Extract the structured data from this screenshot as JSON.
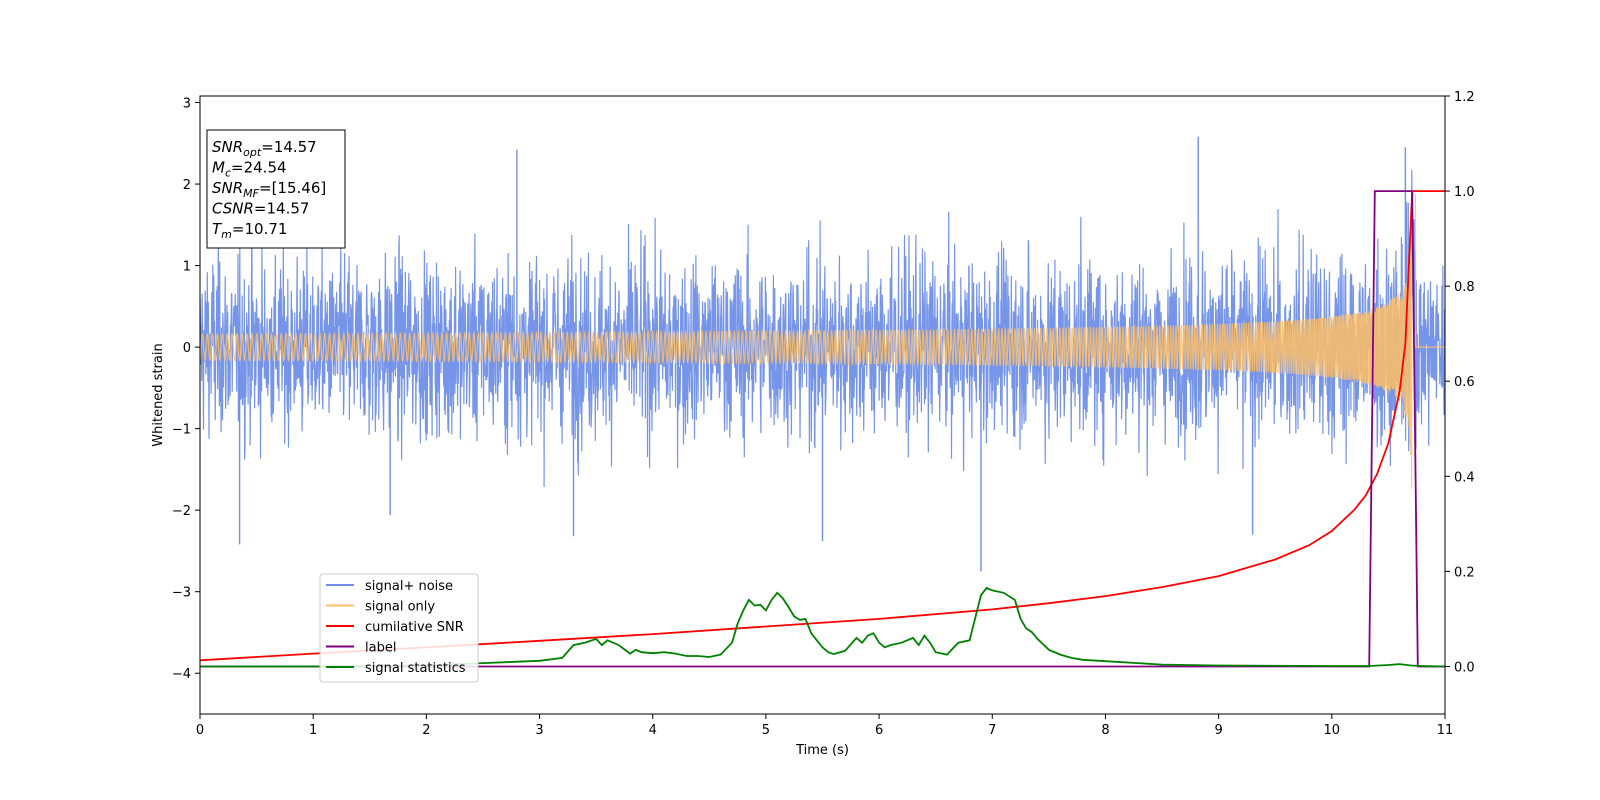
{
  "chart_data": {
    "type": "line",
    "xlabel": "Time (s)",
    "ylabel": "Whitened strain",
    "xlim": [
      0,
      11
    ],
    "ylim_left": [
      -4.5,
      3.08
    ],
    "ylim_right": [
      -0.1,
      1.2
    ],
    "x_ticks": [
      0,
      1,
      2,
      3,
      4,
      5,
      6,
      7,
      8,
      9,
      10,
      11
    ],
    "y_ticks_left": [
      -4,
      -3,
      -2,
      -1,
      0,
      1,
      2,
      3
    ],
    "y_ticks_right": [
      0.0,
      0.2,
      0.4,
      0.6,
      0.8,
      1.0,
      1.2
    ],
    "y_tick_labels_left": [
      "−4",
      "−3",
      "−2",
      "−1",
      "0",
      "1",
      "2",
      "3"
    ],
    "y_tick_labels_right": [
      "0.0",
      "0.2",
      "0.4",
      "0.6",
      "0.8",
      "1.0",
      "1.2"
    ],
    "x_tick_labels": [
      "0",
      "1",
      "2",
      "3",
      "4",
      "5",
      "6",
      "7",
      "8",
      "9",
      "10",
      "11"
    ],
    "grid": false,
    "legend_placement": "lower-left",
    "annotation_box": {
      "lines": [
        {
          "sym": "SNR",
          "sub": "opt",
          "value": "=14.57"
        },
        {
          "sym": "M",
          "sub": "c",
          "value": "=24.54"
        },
        {
          "sym": "SNR",
          "sub": "MF",
          "value": "=[15.46]"
        },
        {
          "sym": "CSNR",
          "sub": "",
          "value": "=14.57"
        },
        {
          "sym": "T",
          "sub": "m",
          "value": "=10.71"
        }
      ]
    },
    "series": [
      {
        "name": "signal+ noise",
        "axis": "left",
        "color": "#6f8fe8",
        "kind": "noise",
        "noise_std": 0.75,
        "approx_range": [
          -2.75,
          2.58
        ],
        "peaks": [
          [
            0.35,
            -2.42
          ],
          [
            1.68,
            -2.06
          ],
          [
            2.8,
            2.42
          ],
          [
            3.3,
            -2.32
          ],
          [
            5.5,
            -2.38
          ],
          [
            6.9,
            -2.75
          ],
          [
            8.82,
            2.58
          ],
          [
            9.3,
            -2.3
          ],
          [
            10.65,
            2.45
          ]
        ]
      },
      {
        "name": "signal only",
        "axis": "left",
        "color": "#ffbf66",
        "kind": "chirp",
        "merger_time": 10.71,
        "peak_amplitude": 2.25
      },
      {
        "name": "cumilative SNR",
        "axis": "right",
        "color": "#ff0000",
        "x": [
          0,
          1,
          2,
          3,
          4,
          5,
          6,
          7,
          7.5,
          8,
          8.5,
          9,
          9.5,
          9.8,
          10,
          10.2,
          10.3,
          10.4,
          10.5,
          10.6,
          10.65,
          10.71,
          11
        ],
        "y": [
          0.013,
          0.027,
          0.04,
          0.054,
          0.068,
          0.084,
          0.1,
          0.12,
          0.133,
          0.148,
          0.167,
          0.19,
          0.225,
          0.255,
          0.285,
          0.33,
          0.36,
          0.405,
          0.47,
          0.58,
          0.68,
          1.0,
          1.0
        ]
      },
      {
        "name": "label",
        "axis": "right",
        "color": "#800080",
        "x": [
          0,
          10.33,
          10.38,
          10.71,
          10.76,
          11
        ],
        "y": [
          0,
          0,
          1,
          1,
          0,
          0
        ]
      },
      {
        "name": "signal statistics",
        "axis": "right",
        "color": "#008000",
        "x": [
          0,
          1,
          2,
          2.5,
          3,
          3.2,
          3.3,
          3.4,
          3.5,
          3.55,
          3.6,
          3.7,
          3.8,
          3.85,
          3.9,
          4.0,
          4.1,
          4.2,
          4.3,
          4.4,
          4.5,
          4.6,
          4.7,
          4.75,
          4.8,
          4.85,
          4.9,
          4.95,
          5.0,
          5.05,
          5.1,
          5.15,
          5.2,
          5.25,
          5.3,
          5.35,
          5.4,
          5.45,
          5.5,
          5.55,
          5.6,
          5.7,
          5.8,
          5.85,
          5.9,
          5.95,
          6.0,
          6.05,
          6.1,
          6.2,
          6.3,
          6.35,
          6.4,
          6.45,
          6.5,
          6.6,
          6.7,
          6.8,
          6.9,
          6.95,
          7.0,
          7.1,
          7.2,
          7.25,
          7.3,
          7.35,
          7.4,
          7.5,
          7.6,
          7.7,
          7.8,
          8.0,
          8.5,
          9.0,
          10.0,
          10.33,
          10.5,
          10.6,
          10.7,
          10.8,
          11
        ],
        "y": [
          0.0,
          0.0,
          0.002,
          0.007,
          0.012,
          0.018,
          0.045,
          0.05,
          0.058,
          0.045,
          0.055,
          0.045,
          0.027,
          0.035,
          0.03,
          0.028,
          0.03,
          0.027,
          0.022,
          0.022,
          0.02,
          0.025,
          0.05,
          0.09,
          0.118,
          0.14,
          0.128,
          0.13,
          0.118,
          0.14,
          0.155,
          0.143,
          0.125,
          0.105,
          0.098,
          0.1,
          0.07,
          0.055,
          0.04,
          0.03,
          0.026,
          0.033,
          0.06,
          0.05,
          0.065,
          0.07,
          0.05,
          0.04,
          0.045,
          0.05,
          0.06,
          0.045,
          0.065,
          0.05,
          0.03,
          0.025,
          0.05,
          0.055,
          0.15,
          0.165,
          0.16,
          0.155,
          0.14,
          0.1,
          0.08,
          0.072,
          0.058,
          0.035,
          0.025,
          0.018,
          0.014,
          0.011,
          0.004,
          0.002,
          0.001,
          0.001,
          0.003,
          0.005,
          0.002,
          0.001,
          0.0
        ]
      }
    ]
  }
}
